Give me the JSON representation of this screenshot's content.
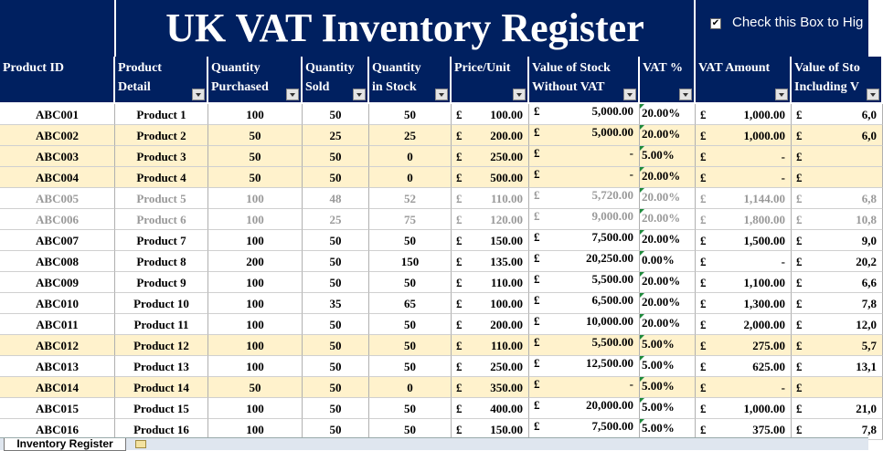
{
  "title": "UK VAT Inventory Register",
  "checkbox_label": "Check this Box to Hig",
  "currency": "£",
  "sheet_tab": "Inventory Register",
  "headers": [
    "Product ID",
    "Product\nDetail",
    "Quantity\nPurchased",
    "Quantity\nSold",
    "Quantity\nin Stock",
    "Price/Unit",
    "Value of Stock\nWithout VAT",
    "VAT %",
    "VAT Amount",
    "Value of Sto\nIncluding V"
  ],
  "rows": [
    {
      "cells": [
        "ABC001",
        "Product 1",
        100,
        50,
        50,
        "100.00",
        "5,000.00",
        "20.00%",
        "1,000.00",
        "6,0"
      ]
    },
    {
      "cells": [
        "ABC002",
        "Product 2",
        50,
        25,
        25,
        "200.00",
        "5,000.00",
        "20.00%",
        "1,000.00",
        "6,0"
      ],
      "highlight": true
    },
    {
      "cells": [
        "ABC003",
        "Product 3",
        50,
        50,
        0,
        "250.00",
        "-",
        "5.00%",
        "-",
        null
      ],
      "highlight": true
    },
    {
      "cells": [
        "ABC004",
        "Product 4",
        50,
        50,
        0,
        "500.00",
        "-",
        "20.00%",
        "-",
        null
      ],
      "highlight": true
    },
    {
      "cells": [
        "ABC005",
        "Product 5",
        100,
        48,
        52,
        "110.00",
        "5,720.00",
        "20.00%",
        "1,144.00",
        "6,8"
      ],
      "struck": true
    },
    {
      "cells": [
        "ABC006",
        "Product 6",
        100,
        25,
        75,
        "120.00",
        "9,000.00",
        "20.00%",
        "1,800.00",
        "10,8"
      ],
      "struck": true
    },
    {
      "cells": [
        "ABC007",
        "Product 7",
        100,
        50,
        50,
        "150.00",
        "7,500.00",
        "20.00%",
        "1,500.00",
        "9,0"
      ]
    },
    {
      "cells": [
        "ABC008",
        "Product 8",
        200,
        50,
        150,
        "135.00",
        "20,250.00",
        "0.00%",
        "-",
        "20,2"
      ]
    },
    {
      "cells": [
        "ABC009",
        "Product 9",
        100,
        50,
        50,
        "110.00",
        "5,500.00",
        "20.00%",
        "1,100.00",
        "6,6"
      ]
    },
    {
      "cells": [
        "ABC010",
        "Product 10",
        100,
        35,
        65,
        "100.00",
        "6,500.00",
        "20.00%",
        "1,300.00",
        "7,8"
      ]
    },
    {
      "cells": [
        "ABC011",
        "Product 11",
        100,
        50,
        50,
        "200.00",
        "10,000.00",
        "20.00%",
        "2,000.00",
        "12,0"
      ]
    },
    {
      "cells": [
        "ABC012",
        "Product 12",
        100,
        50,
        50,
        "110.00",
        "5,500.00",
        "5.00%",
        "275.00",
        "5,7"
      ],
      "highlight": true
    },
    {
      "cells": [
        "ABC013",
        "Product 13",
        100,
        50,
        50,
        "250.00",
        "12,500.00",
        "5.00%",
        "625.00",
        "13,1"
      ]
    },
    {
      "cells": [
        "ABC014",
        "Product 14",
        50,
        50,
        0,
        "350.00",
        "-",
        "5.00%",
        "-",
        null
      ],
      "highlight": true
    },
    {
      "cells": [
        "ABC015",
        "Product 15",
        100,
        50,
        50,
        "400.00",
        "20,000.00",
        "5.00%",
        "1,000.00",
        "21,0"
      ]
    },
    {
      "cells": [
        "ABC016",
        "Product 16",
        100,
        50,
        50,
        "150.00",
        "7,500.00",
        "5.00%",
        "375.00",
        "7,8"
      ]
    }
  ]
}
